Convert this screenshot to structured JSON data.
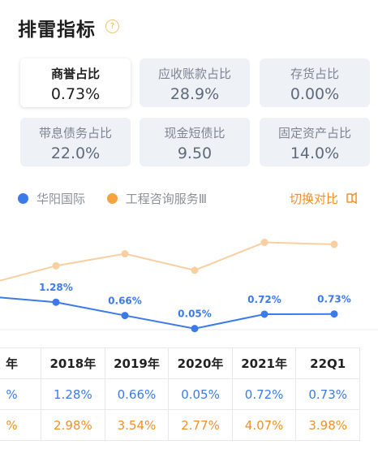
{
  "header": {
    "title": "排雷指标",
    "help_icon": "?"
  },
  "cards": [
    {
      "label": "商誉占比",
      "value": "0.73%",
      "active": true
    },
    {
      "label": "应收账款占比",
      "value": "28.9%"
    },
    {
      "label": "存货占比",
      "value": "0.00%"
    },
    {
      "label": "带息债务占比",
      "value": "22.0%"
    },
    {
      "label": "现金短债比",
      "value": "9.50"
    },
    {
      "label": "固定资产占比",
      "value": "14.0%"
    }
  ],
  "legend": {
    "series1": {
      "label": "华阳国际",
      "color": "#3b7ae8"
    },
    "series2": {
      "label": "工程咨询服务Ⅲ",
      "color": "#f5a340"
    },
    "compare_label": "切换对比",
    "compare_icon": "toggle-icon"
  },
  "chart_data": {
    "type": "line",
    "categories": [
      "2018年",
      "2019年",
      "2020年",
      "2021年",
      "22Q1"
    ],
    "series": [
      {
        "name": "华阳国际",
        "values": [
          1.28,
          0.66,
          0.05,
          0.72,
          0.73
        ],
        "labels": [
          "1.28%",
          "0.66%",
          "0.05%",
          "0.72%",
          "0.73%"
        ]
      },
      {
        "name": "工程咨询服务Ⅲ",
        "values": [
          2.98,
          3.54,
          2.77,
          4.07,
          3.98
        ]
      }
    ]
  },
  "table": {
    "header": [
      "年",
      "2018年",
      "2019年",
      "2020年",
      "2021年",
      "22Q1"
    ],
    "row1": [
      "%",
      "1.28%",
      "0.66%",
      "0.05%",
      "0.72%",
      "0.73%"
    ],
    "row2": [
      "%",
      "2.98%",
      "3.54%",
      "2.77%",
      "4.07%",
      "3.98%"
    ]
  }
}
